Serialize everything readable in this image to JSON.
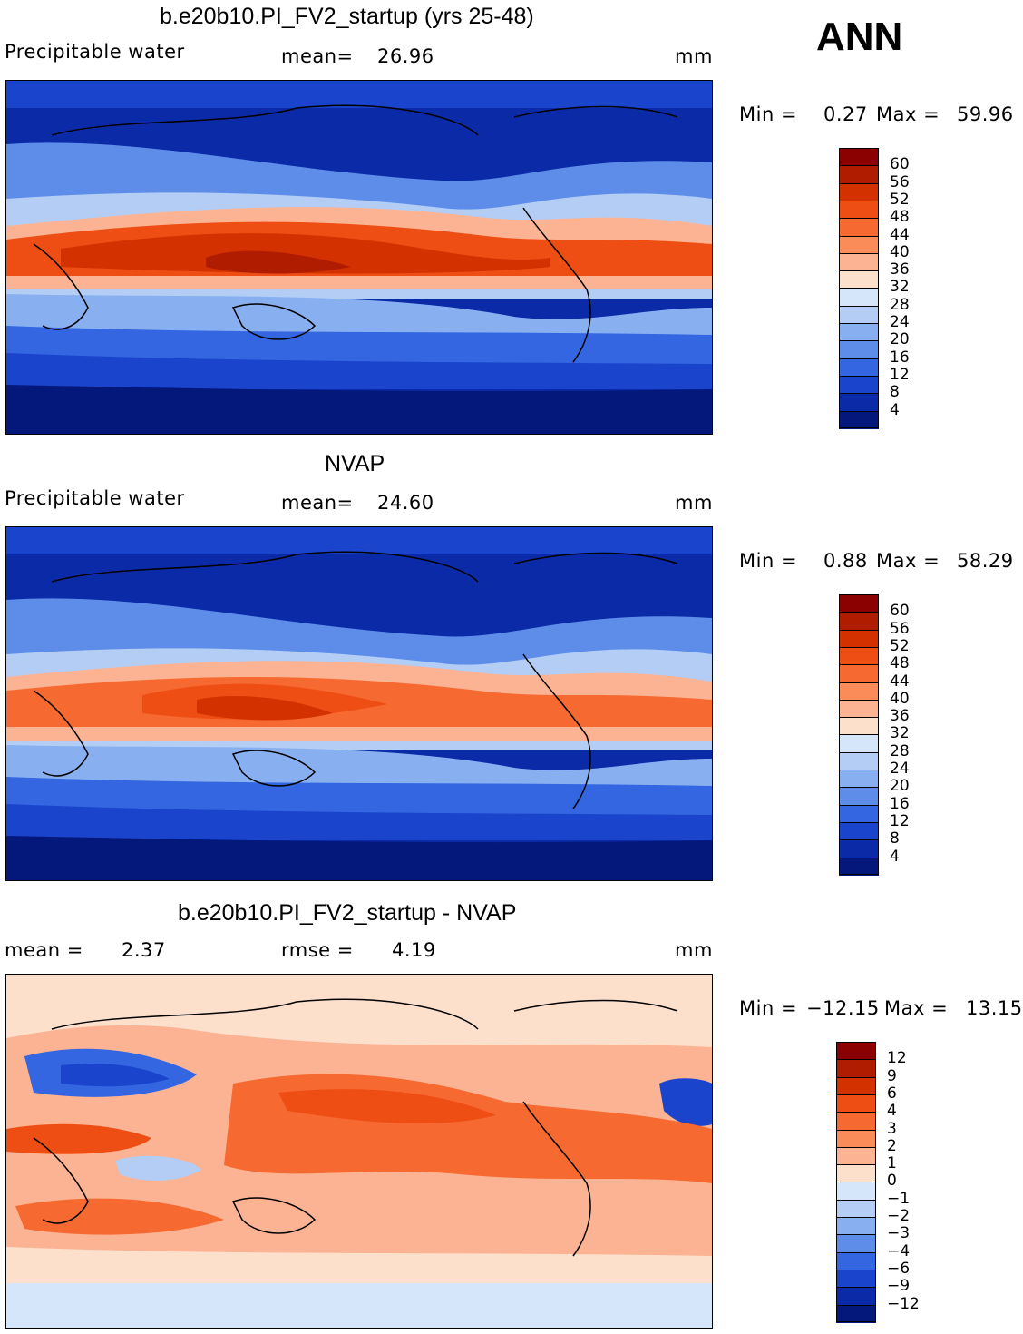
{
  "season": "ANN",
  "panels": [
    {
      "title": "b.e20b10.PI_FV2_startup (yrs 25-48)",
      "variable": "Precipitable water",
      "stat1_label": "mean=",
      "stat1_value": "26.96",
      "units": "mm",
      "min_label": "Min =",
      "min_value": "0.27",
      "max_label": "Max =",
      "max_value": "59.96",
      "colorbar": {
        "labels": [
          "60",
          "56",
          "52",
          "48",
          "44",
          "40",
          "36",
          "32",
          "28",
          "24",
          "20",
          "16",
          "12",
          "8",
          "4"
        ],
        "colors": [
          "#8b0000",
          "#b01c00",
          "#d43100",
          "#ee4e14",
          "#f66a32",
          "#fa8c5a",
          "#fcb394",
          "#fde0cc",
          "#d6e6fa",
          "#b3cdf5",
          "#88b0f0",
          "#5d8de8",
          "#3366e0",
          "#1a44cc",
          "#0a2aa8",
          "#04187c"
        ]
      }
    },
    {
      "title": "NVAP",
      "variable": "Precipitable water",
      "stat1_label": "mean=",
      "stat1_value": "24.60",
      "units": "mm",
      "min_label": "Min =",
      "min_value": "0.88",
      "max_label": "Max =",
      "max_value": "58.29",
      "colorbar": {
        "labels": [
          "60",
          "56",
          "52",
          "48",
          "44",
          "40",
          "36",
          "32",
          "28",
          "24",
          "20",
          "16",
          "12",
          "8",
          "4"
        ],
        "colors": [
          "#8b0000",
          "#b01c00",
          "#d43100",
          "#ee4e14",
          "#f66a32",
          "#fa8c5a",
          "#fcb394",
          "#fde0cc",
          "#d6e6fa",
          "#b3cdf5",
          "#88b0f0",
          "#5d8de8",
          "#3366e0",
          "#1a44cc",
          "#0a2aa8",
          "#04187c"
        ]
      }
    },
    {
      "title": "b.e20b10.PI_FV2_startup - NVAP",
      "stat1_label": "mean =",
      "stat1_value": "2.37",
      "stat2_label": "rmse =",
      "stat2_value": "4.19",
      "units": "mm",
      "min_label": "Min =",
      "min_value": "−12.15",
      "max_label": "Max =",
      "max_value": "13.15",
      "colorbar": {
        "labels": [
          "12",
          "9",
          "6",
          "4",
          "3",
          "2",
          "1",
          "0",
          "−1",
          "−2",
          "−3",
          "−4",
          "−6",
          "−9",
          "−12"
        ],
        "colors": [
          "#8b0000",
          "#b01c00",
          "#d43100",
          "#ee4e14",
          "#f66a32",
          "#fa8c5a",
          "#fcb394",
          "#fde0cc",
          "#d6e6fa",
          "#b3cdf5",
          "#88b0f0",
          "#5d8de8",
          "#3366e0",
          "#1a44cc",
          "#0a2aa8",
          "#04187c"
        ]
      }
    }
  ]
}
